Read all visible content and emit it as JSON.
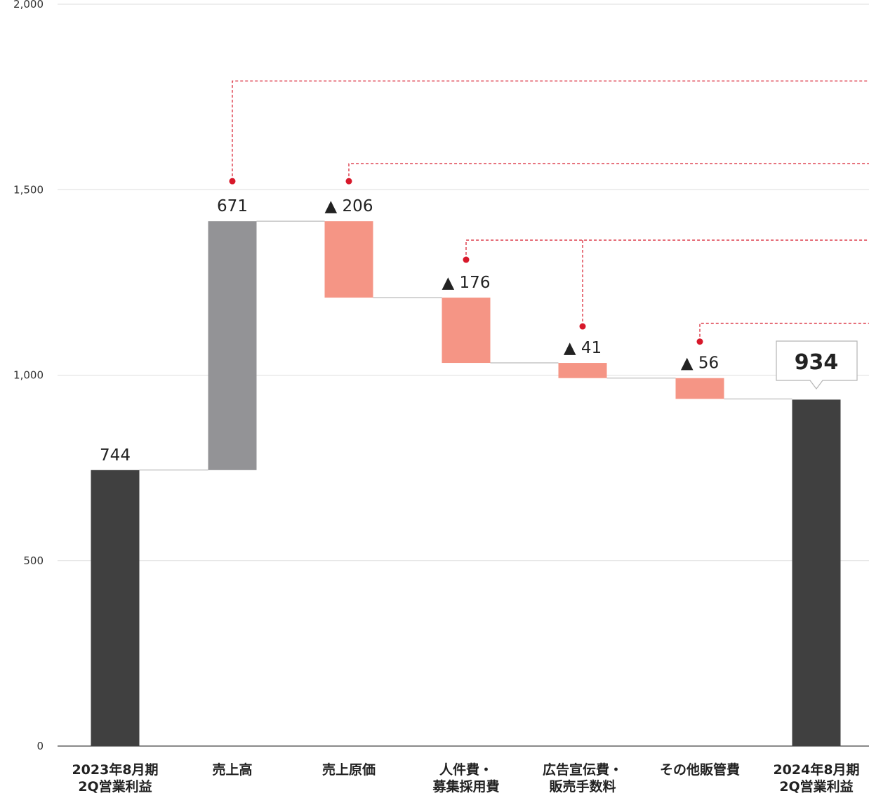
{
  "chart_data": {
    "type": "waterfall",
    "ylim": [
      0,
      2000
    ],
    "yticks": [
      0,
      500,
      1000,
      1500,
      2000
    ],
    "ytick_labels": [
      "0",
      "500",
      "1,000",
      "1,500",
      "2,000"
    ],
    "categories": [
      [
        "2023年8月期",
        "2Q営業利益"
      ],
      [
        "売上高"
      ],
      [
        "売上原価"
      ],
      [
        "人件費・",
        "募集採用費"
      ],
      [
        "広告宣伝費・",
        "販売手数料"
      ],
      [
        "その他販管費"
      ],
      [
        "2024年8月期",
        "2Q営業利益"
      ]
    ],
    "steps": [
      {
        "kind": "total",
        "value": 744,
        "label": "744"
      },
      {
        "kind": "increase",
        "value": 671,
        "label": "671"
      },
      {
        "kind": "decrease",
        "value": -206,
        "label": "▲ 206"
      },
      {
        "kind": "decrease",
        "value": -176,
        "label": "▲ 176"
      },
      {
        "kind": "decrease",
        "value": -41,
        "label": "▲ 41"
      },
      {
        "kind": "decrease",
        "value": -56,
        "label": "▲ 56"
      },
      {
        "kind": "total",
        "value": 934,
        "label": "934"
      }
    ],
    "colors": {
      "total": "#404040",
      "increase": "#939396",
      "decrease": "#f59585",
      "annotation": "#d7182a",
      "grid": "#dddddd",
      "axis": "#8a8a8a",
      "connector": "#aaaaaa"
    }
  }
}
